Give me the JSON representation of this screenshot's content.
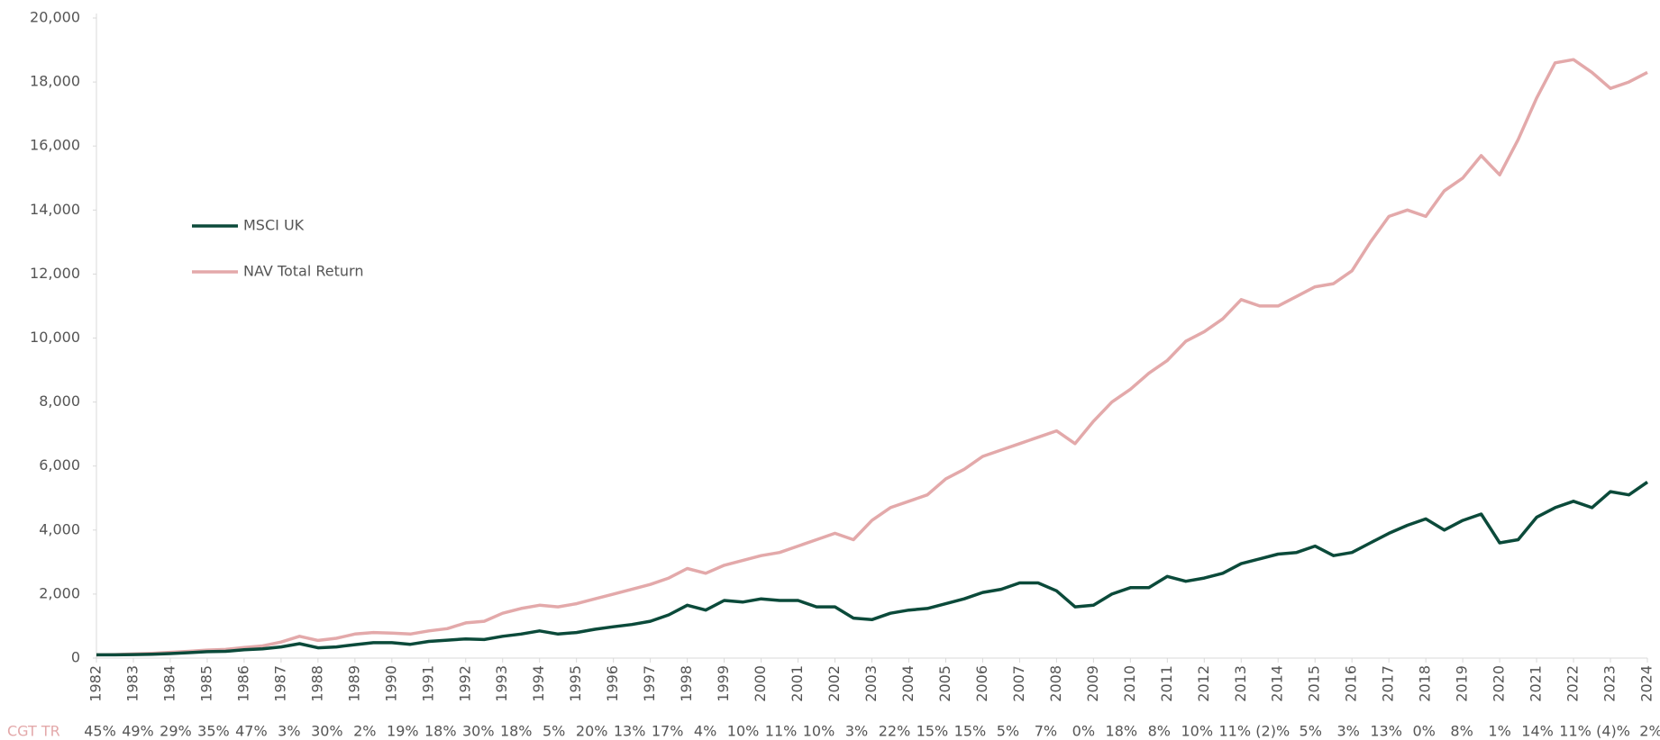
{
  "chart_data": {
    "type": "line",
    "x": [
      1982,
      1982.5,
      1983,
      1983.5,
      1984,
      1984.5,
      1985,
      1985.5,
      1986,
      1986.5,
      1987,
      1987.5,
      1988,
      1988.5,
      1989,
      1989.5,
      1990,
      1990.5,
      1991,
      1991.5,
      1992,
      1992.5,
      1993,
      1993.5,
      1994,
      1994.5,
      1995,
      1995.5,
      1996,
      1996.5,
      1997,
      1997.5,
      1998,
      1998.5,
      1999,
      1999.5,
      2000,
      2000.5,
      2001,
      2001.5,
      2002,
      2002.5,
      2003,
      2003.5,
      2004,
      2004.5,
      2005,
      2005.5,
      2006,
      2006.5,
      2007,
      2007.5,
      2008,
      2008.5,
      2009,
      2009.5,
      2010,
      2010.5,
      2011,
      2011.5,
      2012,
      2012.5,
      2013,
      2013.5,
      2014,
      2014.5,
      2015,
      2015.5,
      2016,
      2016.5,
      2017,
      2017.5,
      2018,
      2018.5,
      2019,
      2019.5,
      2020,
      2020.5,
      2021,
      2021.5,
      2022,
      2022.5,
      2023,
      2023.5,
      2024
    ],
    "series": [
      {
        "name": "MSCI UK",
        "color": "#0b4a3a",
        "values": [
          100,
          100,
          110,
          120,
          140,
          170,
          200,
          210,
          260,
          290,
          350,
          450,
          320,
          350,
          420,
          480,
          480,
          430,
          520,
          560,
          600,
          580,
          680,
          750,
          850,
          750,
          800,
          900,
          980,
          1050,
          1150,
          1350,
          1650,
          1500,
          1800,
          1750,
          1850,
          1800,
          1800,
          1600,
          1600,
          1250,
          1200,
          1400,
          1500,
          1550,
          1700,
          1850,
          2050,
          2150,
          2350,
          2350,
          2100,
          1600,
          1650,
          2000,
          2200,
          2200,
          2550,
          2400,
          2500,
          2650,
          2950,
          3100,
          3250,
          3300,
          3500,
          3200,
          3300,
          3600,
          3900,
          4150,
          4350,
          4000,
          4300,
          4500,
          3600,
          3700,
          4400,
          4700,
          4900,
          4700,
          5200,
          5100,
          5500
        ]
      },
      {
        "name": "NAV Total Return",
        "color": "#e3a9aa",
        "values": [
          100,
          110,
          130,
          150,
          180,
          210,
          250,
          270,
          330,
          380,
          500,
          680,
          550,
          620,
          750,
          800,
          780,
          750,
          850,
          920,
          1100,
          1150,
          1400,
          1550,
          1650,
          1600,
          1700,
          1850,
          2000,
          2150,
          2300,
          2500,
          2800,
          2650,
          2900,
          3050,
          3200,
          3300,
          3500,
          3700,
          3900,
          3700,
          4300,
          4700,
          4900,
          5100,
          5600,
          5900,
          6300,
          6500,
          6700,
          6900,
          7100,
          6700,
          7400,
          8000,
          8400,
          8900,
          9300,
          9900,
          10200,
          10600,
          11200,
          11000,
          11000,
          11300,
          11600,
          11700,
          12100,
          13000,
          13800,
          14000,
          13800,
          14600,
          15000,
          15700,
          15100,
          16200,
          17500,
          18600,
          18700,
          18300,
          17800,
          18000,
          18300
        ]
      }
    ],
    "xlim": [
      1982,
      2024
    ],
    "xticks": [
      1982,
      1983,
      1984,
      1985,
      1986,
      1987,
      1988,
      1989,
      1990,
      1991,
      1992,
      1993,
      1994,
      1995,
      1996,
      1997,
      1998,
      1999,
      2000,
      2001,
      2002,
      2003,
      2004,
      2005,
      2006,
      2007,
      2008,
      2009,
      2010,
      2011,
      2012,
      2013,
      2014,
      2015,
      2016,
      2017,
      2018,
      2019,
      2020,
      2021,
      2022,
      2023,
      2024
    ],
    "ylim": [
      0,
      20000
    ],
    "yticks": [
      0,
      {
        "value": 2000,
        "label": "2,000"
      },
      {
        "value": 4000,
        "label": "4,000"
      },
      {
        "value": 6000,
        "label": "6,000"
      },
      {
        "value": 8000,
        "label": "8,000"
      },
      {
        "value": 10000,
        "label": "10,000"
      },
      {
        "value": 12000,
        "label": "12,000"
      },
      {
        "value": 14000,
        "label": "14,000"
      },
      {
        "value": 16000,
        "label": "16,000"
      },
      {
        "value": 18000,
        "label": "18,000"
      },
      {
        "value": 20000,
        "label": "20,000"
      }
    ],
    "returns_row": {
      "label": "CGT TR",
      "label_color": "#e3a9aa",
      "values": [
        "45%",
        "49%",
        "29%",
        "35%",
        "47%",
        "3%",
        "30%",
        "2%",
        "19%",
        "18%",
        "30%",
        "18%",
        "5%",
        "20%",
        "13%",
        "17%",
        "4%",
        "10%",
        "11%",
        "10%",
        "3%",
        "22%",
        "15%",
        "15%",
        "5%",
        "7%",
        "0%",
        "18%",
        "8%",
        "10%",
        "11%",
        "(2)%",
        "5%",
        "3%",
        "13%",
        "0%",
        "8%",
        "1%",
        "14%",
        "11%",
        "(4)%",
        "2%"
      ]
    }
  }
}
